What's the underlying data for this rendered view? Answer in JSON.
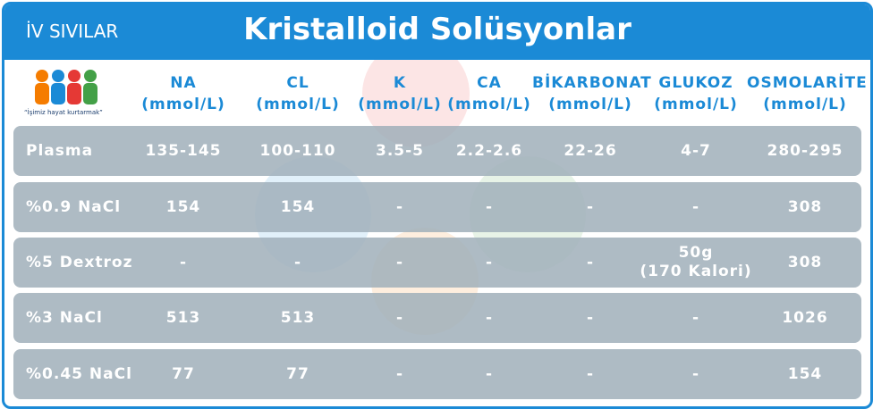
{
  "header": {
    "subtitle": "İV SIVILAR",
    "title": "Kristalloid Solüsyonlar",
    "logo_text": "“İşimiz hayat kurtarmak”"
  },
  "table": {
    "columns": [
      {
        "name": "NA",
        "unit": "(mmol/L)"
      },
      {
        "name": "CL",
        "unit": "(mmol/L)"
      },
      {
        "name": "K",
        "unit": "(mmol/L)"
      },
      {
        "name": "CA",
        "unit": "(mmol/L)"
      },
      {
        "name": "BİKARBONAT",
        "unit": "(mmol/L)"
      },
      {
        "name": "GLUKOZ",
        "unit": "(mmol/L)"
      },
      {
        "name": "OSMOLARİTE",
        "unit": "(mmol/L)"
      }
    ],
    "rows": [
      [
        "Plasma",
        "135-145",
        "100-110",
        "3.5-5",
        "2.2-2.6",
        "22-26",
        "4-7",
        "280-295"
      ],
      [
        "%0.9 NaCl",
        "154",
        "154",
        "-",
        "-",
        "-",
        "-",
        "308"
      ],
      [
        "%5 Dextroz",
        "-",
        "-",
        "-",
        "-",
        "-",
        "50g\n(170 Kalori)",
        "308"
      ],
      [
        "%3 NaCl",
        "513",
        "513",
        "-",
        "-",
        "-",
        "-",
        "1026"
      ],
      [
        "%0.45 NaCl",
        "77",
        "77",
        "-",
        "-",
        "-",
        "-",
        "154"
      ]
    ]
  }
}
